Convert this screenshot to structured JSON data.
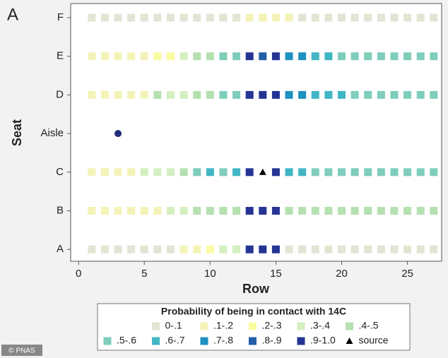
{
  "panel_label": "A",
  "credit": "© PNAS",
  "chart_data": {
    "type": "heatmap",
    "xlabel": "Row",
    "ylabel": "Seat",
    "xlim": [
      -0.6,
      27.6
    ],
    "xticks": [
      0,
      5,
      10,
      15,
      20,
      25
    ],
    "x": [
      1,
      2,
      3,
      4,
      5,
      6,
      7,
      8,
      9,
      10,
      11,
      12,
      13,
      14,
      15,
      16,
      17,
      18,
      19,
      20,
      21,
      22,
      23,
      24,
      25,
      26,
      27
    ],
    "seats": [
      "F",
      "E",
      "D",
      "Aisle",
      "C",
      "B",
      "A"
    ],
    "cells": [
      [
        0,
        0,
        0,
        0,
        0,
        0,
        0,
        0,
        0,
        0,
        0,
        0,
        1,
        1,
        1,
        1,
        0,
        0,
        0,
        0,
        0,
        0,
        0,
        0,
        0,
        0,
        0
      ],
      [
        1,
        1,
        1,
        1,
        1,
        2,
        2,
        3,
        4,
        4,
        5,
        5,
        9,
        8,
        9,
        7,
        7,
        6,
        6,
        5,
        5,
        5,
        5,
        5,
        5,
        5,
        5
      ],
      [
        1,
        1,
        1,
        1,
        1,
        4,
        3,
        3,
        4,
        4,
        5,
        5,
        9,
        9,
        9,
        7,
        7,
        6,
        6,
        6,
        5,
        5,
        5,
        5,
        5,
        5,
        5
      ],
      null,
      [
        1,
        1,
        1,
        1,
        3,
        3,
        3,
        4,
        5,
        6,
        5,
        6,
        9,
        10,
        9,
        6,
        6,
        5,
        5,
        5,
        5,
        5,
        5,
        5,
        5,
        5,
        5
      ],
      [
        1,
        1,
        1,
        1,
        1,
        1,
        3,
        3,
        4,
        4,
        4,
        4,
        9,
        9,
        9,
        4,
        4,
        4,
        4,
        4,
        4,
        4,
        4,
        4,
        4,
        4,
        4
      ],
      [
        0,
        0,
        0,
        0,
        0,
        0,
        0,
        1,
        1,
        2,
        3,
        3,
        9,
        9,
        9,
        0,
        0,
        0,
        0,
        0,
        0,
        0,
        0,
        0,
        0,
        0,
        0
      ]
    ],
    "aisle_point": {
      "x": 3,
      "color": "#1f2d7a"
    },
    "legend": {
      "title": "Probability of being in contact with 14C",
      "labels": [
        "0-.1",
        ".1-.2",
        ".2-.3",
        ".3-.4",
        ".4-.5",
        ".5-.6",
        ".6-.7",
        ".7-.8",
        ".8-.9",
        ".9-1.0",
        "source"
      ],
      "colors": [
        "#e4e4d4",
        "#f3f3b8",
        "#fafaa0",
        "#d4efc0",
        "#b5e0b0",
        "#7fcdbb",
        "#41b6c4",
        "#1d91c0",
        "#225ea8",
        "#253494",
        "#000000"
      ]
    }
  }
}
